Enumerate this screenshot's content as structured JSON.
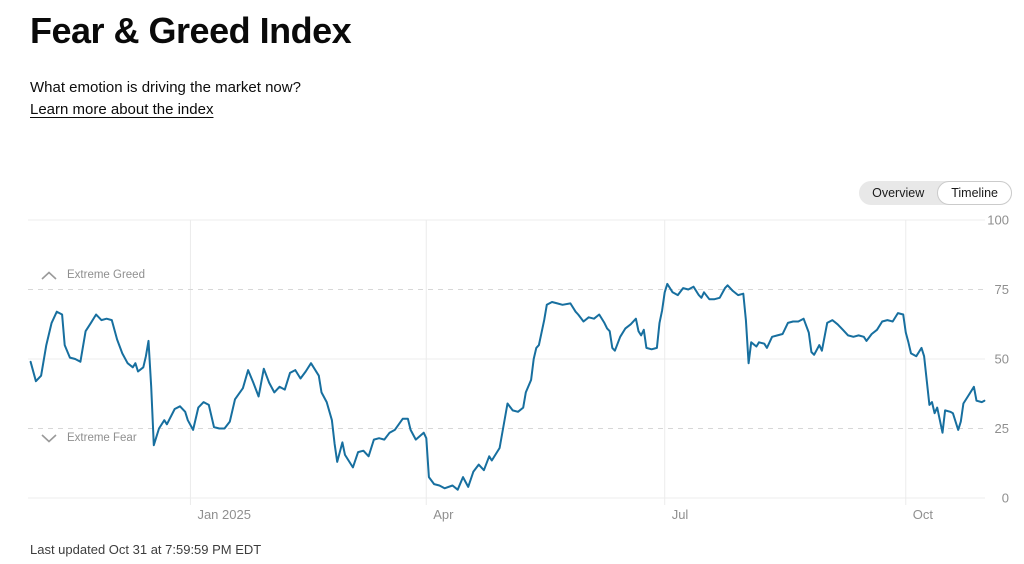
{
  "page": {
    "title": "Fear & Greed Index",
    "subtitle": "What emotion is driving the market now?",
    "link": "Learn more about the index",
    "last_updated": "Last updated Oct 31 at 7:59:59 PM EDT"
  },
  "toggle": {
    "options": [
      "Overview",
      "Timeline"
    ],
    "selected": "Timeline"
  },
  "colors": {
    "line": "#176f9f",
    "grid": "#ececec",
    "grid_dashed": "#d7d7d7",
    "axis_text": "#8f8f8f",
    "annotation_text": "#8f8f8f",
    "chevron": "#9a9a9a",
    "toggle_bg": "#e8e8e8",
    "toggle_active_bg": "#ffffff",
    "toggle_active_border": "#cbcbcb",
    "text": "#0d0d0d"
  },
  "chart_data": {
    "type": "line",
    "title": "Fear & Greed Index timeline",
    "series_name": "Fear & Greed Index",
    "line_color": "#176f9f",
    "ylim": [
      0,
      100
    ],
    "y_ticks": [
      0,
      25,
      50,
      75,
      100
    ],
    "dashed_levels": [
      25,
      75
    ],
    "grid": true,
    "legend": false,
    "x_domain": [
      "2024-10-31",
      "2025-11-01"
    ],
    "x_ticks": [
      {
        "label": "Jan 2025",
        "date": "2025-01-01"
      },
      {
        "label": "Apr",
        "date": "2025-04-01"
      },
      {
        "label": "Jul",
        "date": "2025-07-01"
      },
      {
        "label": "Oct",
        "date": "2025-10-01"
      }
    ],
    "annotations": {
      "greed": "Extreme Greed",
      "fear": "Extreme Fear",
      "greed_threshold": 75,
      "fear_threshold": 25
    },
    "points": [
      [
        "2024-11-01",
        49
      ],
      [
        "2024-11-03",
        42
      ],
      [
        "2024-11-05",
        44
      ],
      [
        "2024-11-07",
        55
      ],
      [
        "2024-11-09",
        63
      ],
      [
        "2024-11-11",
        67
      ],
      [
        "2024-11-13",
        66
      ],
      [
        "2024-11-14",
        55
      ],
      [
        "2024-11-16",
        50.5
      ],
      [
        "2024-11-18",
        50
      ],
      [
        "2024-11-20",
        49
      ],
      [
        "2024-11-22",
        60
      ],
      [
        "2024-11-24",
        63
      ],
      [
        "2024-11-26",
        66
      ],
      [
        "2024-11-28",
        64
      ],
      [
        "2024-11-30",
        64.5
      ],
      [
        "2024-12-02",
        64
      ],
      [
        "2024-12-04",
        57
      ],
      [
        "2024-12-06",
        52
      ],
      [
        "2024-12-08",
        48.5
      ],
      [
        "2024-12-10",
        47
      ],
      [
        "2024-12-11",
        48.5
      ],
      [
        "2024-12-12",
        45.5
      ],
      [
        "2024-12-14",
        47
      ],
      [
        "2024-12-15",
        51
      ],
      [
        "2024-12-16",
        56.5
      ],
      [
        "2024-12-17",
        40
      ],
      [
        "2024-12-18",
        19
      ],
      [
        "2024-12-20",
        25
      ],
      [
        "2024-12-22",
        28
      ],
      [
        "2024-12-23",
        26.5
      ],
      [
        "2024-12-26",
        32
      ],
      [
        "2024-12-28",
        33
      ],
      [
        "2024-12-30",
        31
      ],
      [
        "2024-12-31",
        28
      ],
      [
        "2025-01-02",
        24.5
      ],
      [
        "2025-01-04",
        32.5
      ],
      [
        "2025-01-06",
        34.5
      ],
      [
        "2025-01-08",
        33.5
      ],
      [
        "2025-01-10",
        25.5
      ],
      [
        "2025-01-12",
        25
      ],
      [
        "2025-01-14",
        25
      ],
      [
        "2025-01-16",
        27.5
      ],
      [
        "2025-01-18",
        35.5
      ],
      [
        "2025-01-21",
        39.5
      ],
      [
        "2025-01-23",
        46
      ],
      [
        "2025-01-25",
        41.5
      ],
      [
        "2025-01-27",
        36.5
      ],
      [
        "2025-01-29",
        46.5
      ],
      [
        "2025-01-31",
        41.5
      ],
      [
        "2025-02-02",
        38
      ],
      [
        "2025-02-04",
        40
      ],
      [
        "2025-02-06",
        39
      ],
      [
        "2025-02-08",
        45
      ],
      [
        "2025-02-10",
        46
      ],
      [
        "2025-02-12",
        43
      ],
      [
        "2025-02-14",
        45.5
      ],
      [
        "2025-02-16",
        48.5
      ],
      [
        "2025-02-19",
        44
      ],
      [
        "2025-02-20",
        38
      ],
      [
        "2025-02-22",
        34.5
      ],
      [
        "2025-02-24",
        28
      ],
      [
        "2025-02-25",
        19.5
      ],
      [
        "2025-02-26",
        13
      ],
      [
        "2025-02-28",
        20
      ],
      [
        "2025-03-01",
        15.5
      ],
      [
        "2025-03-04",
        11
      ],
      [
        "2025-03-06",
        16.5
      ],
      [
        "2025-03-08",
        17
      ],
      [
        "2025-03-10",
        15
      ],
      [
        "2025-03-12",
        21
      ],
      [
        "2025-03-14",
        21.5
      ],
      [
        "2025-03-16",
        21
      ],
      [
        "2025-03-18",
        23.5
      ],
      [
        "2025-03-20",
        24.5
      ],
      [
        "2025-03-23",
        28.5
      ],
      [
        "2025-03-25",
        28.5
      ],
      [
        "2025-03-26",
        24.5
      ],
      [
        "2025-03-28",
        21
      ],
      [
        "2025-03-31",
        23.5
      ],
      [
        "2025-04-01",
        21.5
      ],
      [
        "2025-04-02",
        7.5
      ],
      [
        "2025-04-04",
        5
      ],
      [
        "2025-04-06",
        4.5
      ],
      [
        "2025-04-08",
        3.5
      ],
      [
        "2025-04-11",
        4.5
      ],
      [
        "2025-04-13",
        3
      ],
      [
        "2025-04-15",
        7.5
      ],
      [
        "2025-04-17",
        4
      ],
      [
        "2025-04-19",
        9.5
      ],
      [
        "2025-04-21",
        12
      ],
      [
        "2025-04-23",
        10
      ],
      [
        "2025-04-25",
        15
      ],
      [
        "2025-04-26",
        13.5
      ],
      [
        "2025-04-29",
        18
      ],
      [
        "2025-05-02",
        34
      ],
      [
        "2025-05-04",
        31.5
      ],
      [
        "2025-05-06",
        31
      ],
      [
        "2025-05-08",
        32.5
      ],
      [
        "2025-05-09",
        38
      ],
      [
        "2025-05-11",
        42.5
      ],
      [
        "2025-05-12",
        50
      ],
      [
        "2025-05-13",
        54
      ],
      [
        "2025-05-14",
        55
      ],
      [
        "2025-05-16",
        64
      ],
      [
        "2025-05-17",
        69.5
      ],
      [
        "2025-05-19",
        70.5
      ],
      [
        "2025-05-21",
        70
      ],
      [
        "2025-05-23",
        69.5
      ],
      [
        "2025-05-26",
        70
      ],
      [
        "2025-05-28",
        67
      ],
      [
        "2025-05-29",
        66
      ],
      [
        "2025-05-31",
        63.5
      ],
      [
        "2025-06-02",
        65
      ],
      [
        "2025-06-04",
        64.5
      ],
      [
        "2025-06-06",
        66
      ],
      [
        "2025-06-08",
        63
      ],
      [
        "2025-06-09",
        61
      ],
      [
        "2025-06-10",
        60
      ],
      [
        "2025-06-11",
        54
      ],
      [
        "2025-06-12",
        53
      ],
      [
        "2025-06-14",
        58
      ],
      [
        "2025-06-16",
        61
      ],
      [
        "2025-06-18",
        62.5
      ],
      [
        "2025-06-20",
        64.5
      ],
      [
        "2025-06-21",
        60
      ],
      [
        "2025-06-22",
        58.5
      ],
      [
        "2025-06-23",
        60.5
      ],
      [
        "2025-06-24",
        54
      ],
      [
        "2025-06-26",
        53.5
      ],
      [
        "2025-06-28",
        54
      ],
      [
        "2025-06-29",
        63
      ],
      [
        "2025-06-30",
        67.5
      ],
      [
        "2025-07-01",
        74
      ],
      [
        "2025-07-02",
        77
      ],
      [
        "2025-07-04",
        74
      ],
      [
        "2025-07-06",
        73
      ],
      [
        "2025-07-08",
        75.5
      ],
      [
        "2025-07-10",
        75
      ],
      [
        "2025-07-12",
        76
      ],
      [
        "2025-07-14",
        73
      ],
      [
        "2025-07-15",
        72
      ],
      [
        "2025-07-16",
        74
      ],
      [
        "2025-07-18",
        71.5
      ],
      [
        "2025-07-20",
        71.5
      ],
      [
        "2025-07-22",
        72
      ],
      [
        "2025-07-24",
        75.5
      ],
      [
        "2025-07-25",
        76.5
      ],
      [
        "2025-07-27",
        74.5
      ],
      [
        "2025-07-29",
        73
      ],
      [
        "2025-07-31",
        73.5
      ],
      [
        "2025-08-01",
        64
      ],
      [
        "2025-08-02",
        48.5
      ],
      [
        "2025-08-03",
        56
      ],
      [
        "2025-08-05",
        54.5
      ],
      [
        "2025-08-06",
        56
      ],
      [
        "2025-08-08",
        55.5
      ],
      [
        "2025-08-09",
        54
      ],
      [
        "2025-08-11",
        58
      ],
      [
        "2025-08-13",
        58.5
      ],
      [
        "2025-08-15",
        59
      ],
      [
        "2025-08-17",
        63
      ],
      [
        "2025-08-19",
        63.5
      ],
      [
        "2025-08-21",
        63.5
      ],
      [
        "2025-08-23",
        64.5
      ],
      [
        "2025-08-25",
        59.5
      ],
      [
        "2025-08-26",
        52.5
      ],
      [
        "2025-08-27",
        51.5
      ],
      [
        "2025-08-29",
        55
      ],
      [
        "2025-08-30",
        53
      ],
      [
        "2025-09-01",
        63
      ],
      [
        "2025-09-03",
        64
      ],
      [
        "2025-09-05",
        62.5
      ],
      [
        "2025-09-07",
        60.5
      ],
      [
        "2025-09-09",
        58.5
      ],
      [
        "2025-09-11",
        58
      ],
      [
        "2025-09-13",
        58.5
      ],
      [
        "2025-09-15",
        58
      ],
      [
        "2025-09-16",
        56.5
      ],
      [
        "2025-09-18",
        59
      ],
      [
        "2025-09-20",
        60.5
      ],
      [
        "2025-09-22",
        63.5
      ],
      [
        "2025-09-24",
        64
      ],
      [
        "2025-09-26",
        63.5
      ],
      [
        "2025-09-28",
        66.5
      ],
      [
        "2025-09-30",
        66
      ],
      [
        "2025-10-01",
        59.5
      ],
      [
        "2025-10-02",
        56
      ],
      [
        "2025-10-03",
        52
      ],
      [
        "2025-10-05",
        51
      ],
      [
        "2025-10-07",
        54
      ],
      [
        "2025-10-08",
        51
      ],
      [
        "2025-10-10",
        33.5
      ],
      [
        "2025-10-11",
        34.5
      ],
      [
        "2025-10-12",
        30.5
      ],
      [
        "2025-10-13",
        32.5
      ],
      [
        "2025-10-15",
        23.5
      ],
      [
        "2025-10-16",
        31.5
      ],
      [
        "2025-10-18",
        31
      ],
      [
        "2025-10-19",
        30.5
      ],
      [
        "2025-10-21",
        24.5
      ],
      [
        "2025-10-22",
        27.5
      ],
      [
        "2025-10-23",
        34
      ],
      [
        "2025-10-25",
        37
      ],
      [
        "2025-10-27",
        40
      ],
      [
        "2025-10-28",
        35
      ],
      [
        "2025-10-30",
        34.5
      ],
      [
        "2025-10-31",
        35
      ]
    ]
  }
}
